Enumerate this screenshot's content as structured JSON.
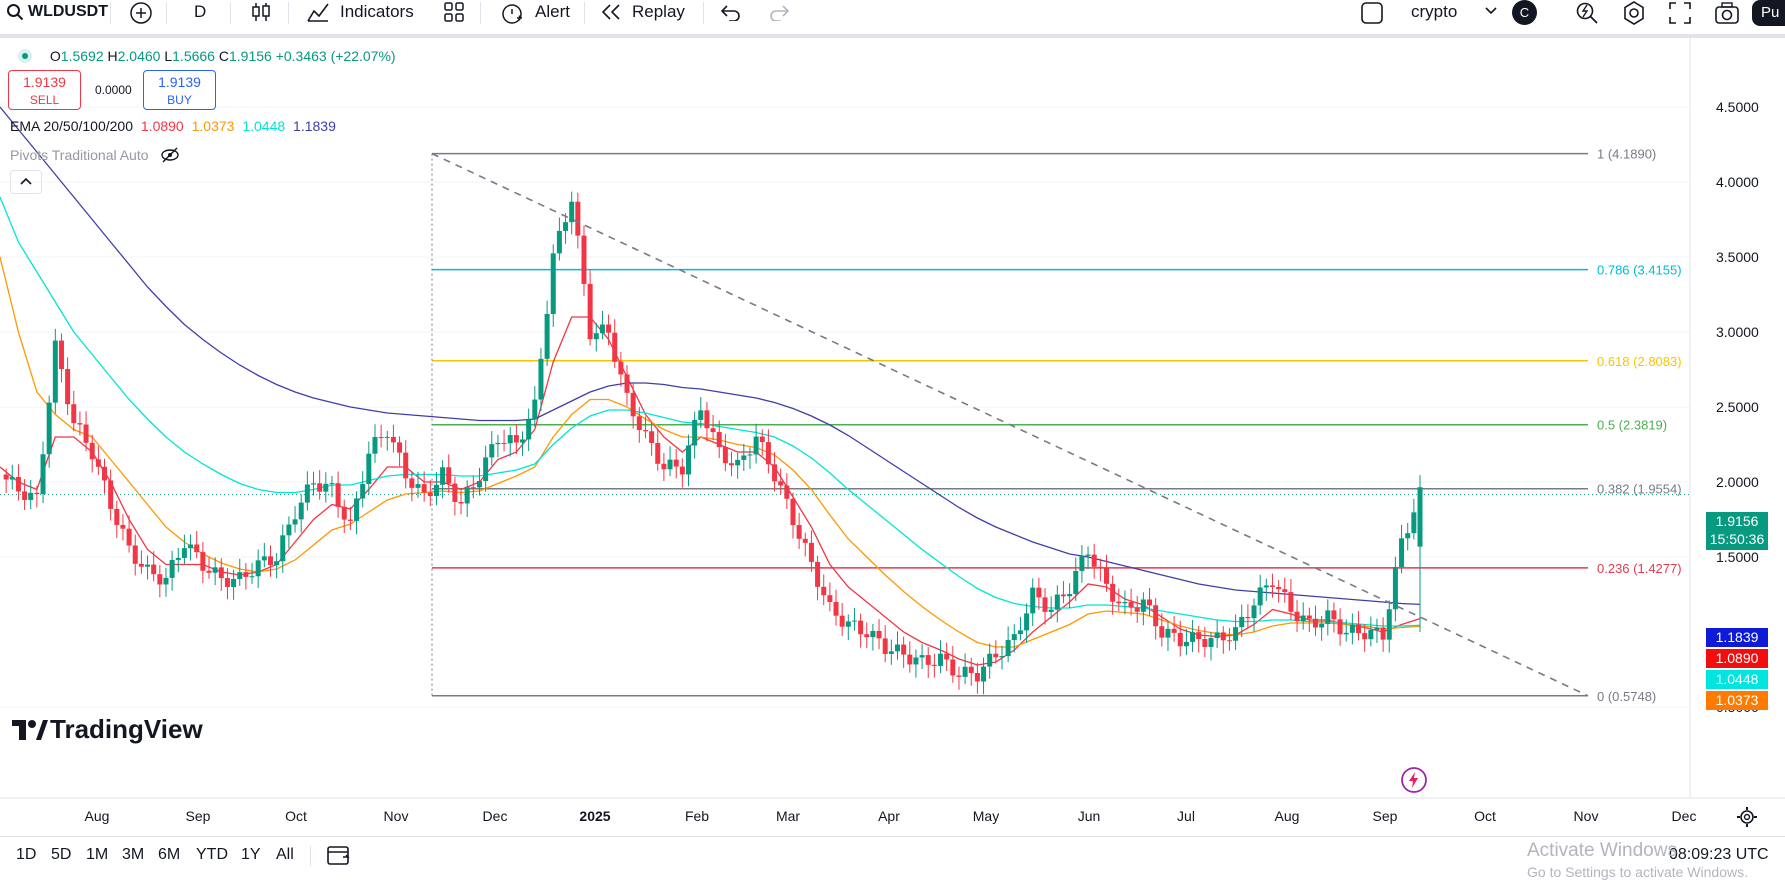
{
  "toolbar": {
    "symbol": "WLDUSDT",
    "interval": "D",
    "indicators_label": "Indicators",
    "alert_label": "Alert",
    "replay_label": "Replay",
    "layout_name": "crypto",
    "avatar_letter": "C",
    "publish_label": "Pu"
  },
  "legend": {
    "open_label": "O",
    "open": "1.5692",
    "high_label": "H",
    "high": "2.0460",
    "low_label": "L",
    "low": "1.5666",
    "close_label": "C",
    "close": "1.9156",
    "change": "+0.3463 (+22.07%)",
    "sell_price": "1.9139",
    "sell_label": "SELL",
    "spread": "0.0000",
    "buy_price": "1.9139",
    "buy_label": "BUY",
    "ema_label": "EMA 20/50/100/200",
    "ema20": "1.0890",
    "ema50": "1.0373",
    "ema100": "1.0448",
    "ema200": "1.1839",
    "pivots_label": "Pivots Traditional Auto"
  },
  "colors": {
    "up": "#089981",
    "down": "#f23645",
    "ema20": "#f23645",
    "ema50": "#ff9800",
    "ema100": "#00e5d4",
    "ema200": "#3f3ea8",
    "fib_1": "#787b86",
    "fib_786": "#00bcd4",
    "fib_618": "#f9c400",
    "fib_5": "#4caf50",
    "fib_382": "#787b86",
    "fib_236": "#e53950",
    "fib_0": "#787b86"
  },
  "chart_data": {
    "type": "line",
    "symbol": "WLDUSDT",
    "interval": "D",
    "y_ticks": [
      "4.5000",
      "4.0000",
      "3.5000",
      "3.0000",
      "2.5000",
      "2.0000",
      "1.5000",
      "0.5000"
    ],
    "ylim": [
      0.45,
      4.75
    ],
    "x_ticks": [
      "Aug",
      "Sep",
      "Oct",
      "Nov",
      "Dec",
      "2025",
      "Feb",
      "Mar",
      "Apr",
      "May",
      "Jun",
      "Jul",
      "Aug",
      "Sep",
      "Oct",
      "Nov",
      "Dec"
    ],
    "fib_levels": [
      {
        "label": "1 (4.1890)",
        "value": 4.189,
        "color": "#787b86"
      },
      {
        "label": "0.786 (3.4155)",
        "value": 3.4155,
        "color": "#00bcd4"
      },
      {
        "label": "0.618 (2.8083)",
        "value": 2.8083,
        "color": "#f9c400"
      },
      {
        "label": "0.5 (2.3819)",
        "value": 2.3819,
        "color": "#4caf50"
      },
      {
        "label": "0.382 (1.9554)",
        "value": 1.9554,
        "color": "#787b86"
      },
      {
        "label": "0.236 (1.4277)",
        "value": 1.4277,
        "color": "#e53950"
      },
      {
        "label": "0 (0.5748)",
        "value": 0.5748,
        "color": "#787b86"
      }
    ],
    "price_close": [
      2.05,
      1.95,
      1.88,
      2.9,
      2.4,
      2.2,
      1.85,
      1.55,
      1.4,
      1.35,
      1.6,
      1.45,
      1.35,
      1.35,
      1.45,
      1.5,
      1.8,
      2.0,
      1.95,
      1.7,
      2.2,
      2.35,
      2.05,
      1.9,
      2.05,
      1.85,
      2.05,
      2.3,
      2.25,
      2.5,
      3.5,
      3.9,
      3.0,
      3.0,
      2.55,
      2.3,
      2.1,
      2.1,
      2.5,
      2.2,
      2.1,
      2.3,
      2.05,
      1.75,
      1.45,
      1.15,
      1.05,
      1.0,
      0.9,
      0.85,
      0.8,
      0.82,
      0.72,
      0.72,
      0.85,
      0.95,
      1.25,
      1.15,
      1.3,
      1.55,
      1.3,
      1.15,
      1.2,
      1.0,
      0.95,
      0.95,
      0.95,
      1.0,
      1.2,
      1.35,
      1.15,
      1.05,
      1.1,
      1.0,
      1.0,
      0.98,
      1.6,
      1.9156
    ],
    "series": [
      {
        "name": "EMA 20",
        "color": "#f23645",
        "last": "1.0890",
        "values": [
          2.1,
          2.0,
          1.95,
          2.3,
          2.3,
          2.2,
          2.0,
          1.75,
          1.55,
          1.45,
          1.45,
          1.45,
          1.4,
          1.38,
          1.4,
          1.45,
          1.6,
          1.75,
          1.85,
          1.82,
          1.95,
          2.1,
          2.1,
          2.0,
          2.0,
          1.95,
          2.0,
          2.15,
          2.2,
          2.35,
          2.8,
          3.1,
          3.1,
          2.95,
          2.7,
          2.45,
          2.3,
          2.2,
          2.3,
          2.25,
          2.2,
          2.2,
          2.1,
          1.9,
          1.7,
          1.45,
          1.3,
          1.2,
          1.1,
          1.0,
          0.93,
          0.88,
          0.82,
          0.78,
          0.8,
          0.88,
          1.0,
          1.1,
          1.2,
          1.32,
          1.3,
          1.22,
          1.18,
          1.1,
          1.02,
          0.98,
          0.97,
          0.98,
          1.05,
          1.15,
          1.12,
          1.08,
          1.08,
          1.05,
          1.03,
          1.0,
          1.05,
          1.089
        ]
      },
      {
        "name": "EMA 50",
        "color": "#ff9800",
        "last": "1.0373",
        "values": [
          3.5,
          3.0,
          2.6,
          2.45,
          2.35,
          2.3,
          2.15,
          2.0,
          1.85,
          1.7,
          1.6,
          1.52,
          1.46,
          1.42,
          1.4,
          1.42,
          1.48,
          1.58,
          1.68,
          1.72,
          1.8,
          1.88,
          1.92,
          1.93,
          1.94,
          1.93,
          1.94,
          1.99,
          2.04,
          2.1,
          2.3,
          2.45,
          2.55,
          2.55,
          2.5,
          2.42,
          2.35,
          2.3,
          2.3,
          2.28,
          2.25,
          2.23,
          2.18,
          2.08,
          1.95,
          1.78,
          1.62,
          1.5,
          1.38,
          1.27,
          1.17,
          1.08,
          1.0,
          0.93,
          0.9,
          0.9,
          0.95,
          1.0,
          1.05,
          1.12,
          1.14,
          1.13,
          1.12,
          1.08,
          1.04,
          1.01,
          0.99,
          0.98,
          1.0,
          1.04,
          1.06,
          1.06,
          1.06,
          1.05,
          1.04,
          1.02,
          1.03,
          1.0373
        ]
      },
      {
        "name": "EMA 100",
        "color": "#00e5d4",
        "last": "1.0448",
        "values": [
          3.9,
          3.6,
          3.4,
          3.2,
          3.0,
          2.85,
          2.7,
          2.55,
          2.42,
          2.3,
          2.2,
          2.12,
          2.05,
          1.99,
          1.95,
          1.93,
          1.93,
          1.95,
          1.98,
          1.98,
          2.01,
          2.04,
          2.05,
          2.05,
          2.05,
          2.04,
          2.04,
          2.06,
          2.08,
          2.12,
          2.25,
          2.36,
          2.44,
          2.48,
          2.48,
          2.46,
          2.43,
          2.4,
          2.39,
          2.37,
          2.35,
          2.33,
          2.3,
          2.24,
          2.16,
          2.06,
          1.95,
          1.85,
          1.75,
          1.65,
          1.55,
          1.46,
          1.37,
          1.29,
          1.23,
          1.19,
          1.17,
          1.16,
          1.16,
          1.18,
          1.18,
          1.17,
          1.16,
          1.14,
          1.12,
          1.1,
          1.08,
          1.07,
          1.07,
          1.08,
          1.08,
          1.07,
          1.07,
          1.06,
          1.05,
          1.04,
          1.04,
          1.0448
        ]
      },
      {
        "name": "EMA 200",
        "color": "#3f3ea8",
        "last": "1.1839",
        "values": [
          4.5,
          4.35,
          4.2,
          4.05,
          3.9,
          3.75,
          3.6,
          3.45,
          3.3,
          3.17,
          3.05,
          2.95,
          2.86,
          2.78,
          2.71,
          2.65,
          2.6,
          2.56,
          2.53,
          2.5,
          2.48,
          2.46,
          2.45,
          2.44,
          2.43,
          2.42,
          2.41,
          2.41,
          2.41,
          2.42,
          2.48,
          2.54,
          2.6,
          2.64,
          2.66,
          2.66,
          2.65,
          2.63,
          2.62,
          2.6,
          2.58,
          2.56,
          2.53,
          2.49,
          2.44,
          2.38,
          2.31,
          2.23,
          2.15,
          2.07,
          1.99,
          1.91,
          1.83,
          1.76,
          1.7,
          1.65,
          1.6,
          1.56,
          1.52,
          1.5,
          1.47,
          1.44,
          1.41,
          1.38,
          1.35,
          1.32,
          1.3,
          1.28,
          1.27,
          1.26,
          1.25,
          1.24,
          1.23,
          1.22,
          1.21,
          1.2,
          1.19,
          1.1839
        ]
      }
    ],
    "last_price": "1.9156",
    "countdown": "15:50:36",
    "trendline": {
      "from": 4.189,
      "to": 0.5748
    }
  },
  "time_ranges": [
    "1D",
    "5D",
    "1M",
    "3M",
    "6M",
    "YTD",
    "1Y",
    "All"
  ],
  "clock": "08:09:23 UTC",
  "watermark": {
    "branding": "TradingView",
    "activate_title": "Activate Windows",
    "activate_sub": "Go to Settings to activate Windows."
  }
}
